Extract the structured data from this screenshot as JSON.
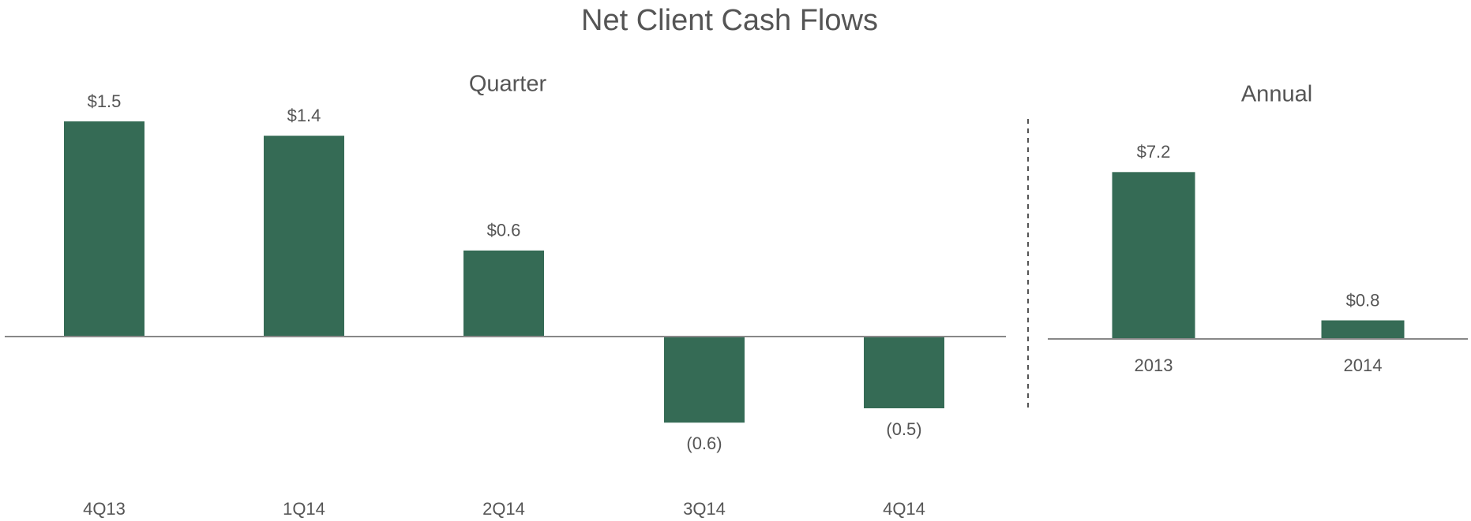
{
  "title": "Net Client Cash Flows",
  "chart_data": [
    {
      "type": "bar",
      "title": "Quarter",
      "categories": [
        "4Q13",
        "1Q14",
        "2Q14",
        "3Q14",
        "4Q14"
      ],
      "values": [
        1.5,
        1.4,
        0.6,
        -0.6,
        -0.5
      ],
      "value_labels": [
        "$1.5",
        "$1.4",
        "$0.6",
        "(0.6)",
        "(0.5)"
      ],
      "color": "#356b55",
      "ylim": [
        -1,
        2
      ]
    },
    {
      "type": "bar",
      "title": "Annual",
      "categories": [
        "2013",
        "2014"
      ],
      "values": [
        7.2,
        0.8
      ],
      "value_labels": [
        "$7.2",
        "$0.8"
      ],
      "color": "#356b55",
      "ylim": [
        0,
        10
      ]
    }
  ]
}
